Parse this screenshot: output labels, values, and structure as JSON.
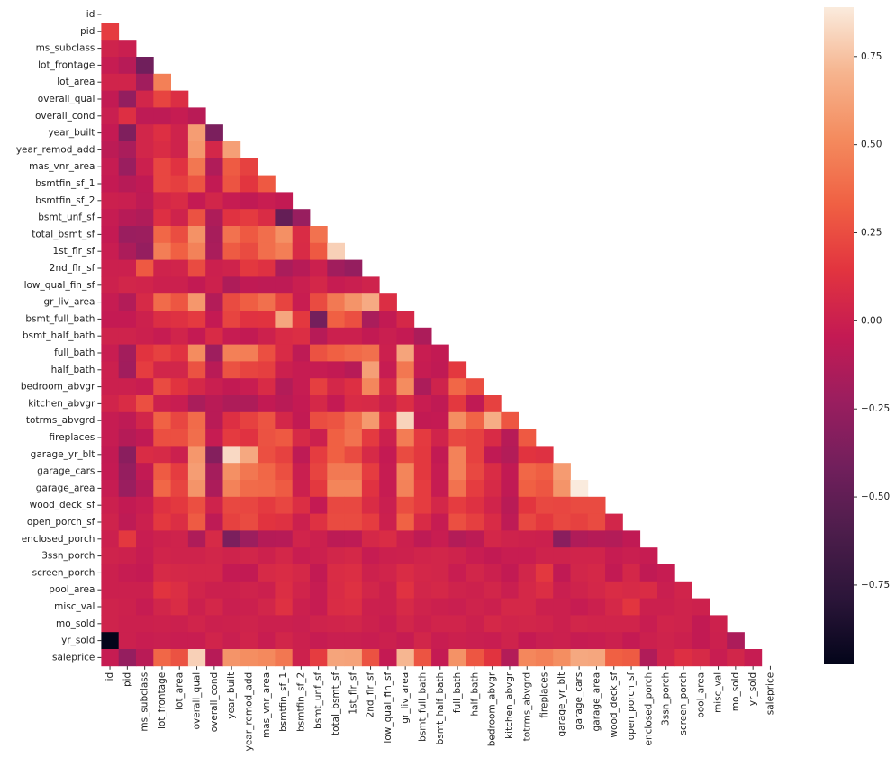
{
  "chart_data": {
    "type": "heatmap",
    "categories": [
      "id",
      "pid",
      "ms_subclass",
      "lot_frontage",
      "lot_area",
      "overall_qual",
      "overall_cond",
      "year_built",
      "year_remod_add",
      "mas_vnr_area",
      "bsmtfin_sf_1",
      "bsmtfin_sf_2",
      "bsmt_unf_sf",
      "total_bsmt_sf",
      "1st_flr_sf",
      "2nd_flr_sf",
      "low_qual_fin_sf",
      "gr_liv_area",
      "bsmt_full_bath",
      "bsmt_half_bath",
      "full_bath",
      "half_bath",
      "bedroom_abvgr",
      "kitchen_abvgr",
      "totrms_abvgrd",
      "fireplaces",
      "garage_yr_blt",
      "garage_cars",
      "garage_area",
      "wood_deck_sf",
      "open_porch_sf",
      "enclosed_porch",
      "3ssn_porch",
      "screen_porch",
      "pool_area",
      "misc_val",
      "mo_sold",
      "yr_sold",
      "saleprice"
    ],
    "values": [
      [],
      [
        0.18
      ],
      [
        0.02,
        -0.01
      ],
      [
        -0.03,
        -0.1,
        -0.42
      ],
      [
        0.03,
        0.03,
        -0.2,
        0.47
      ],
      [
        -0.05,
        -0.26,
        0.04,
        0.21,
        0.1
      ],
      [
        -0.01,
        0.11,
        -0.07,
        -0.07,
        -0.03,
        -0.09
      ],
      [
        -0.04,
        -0.35,
        0.04,
        0.11,
        0.02,
        0.6,
        -0.37
      ],
      [
        -0.08,
        -0.16,
        0.04,
        0.09,
        0.02,
        0.57,
        0.05,
        0.61
      ],
      [
        -0.03,
        -0.23,
        0.0,
        0.22,
        0.13,
        0.43,
        -0.13,
        0.31,
        0.2
      ],
      [
        -0.04,
        -0.1,
        -0.06,
        0.22,
        0.19,
        0.28,
        -0.05,
        0.28,
        0.15,
        0.3
      ],
      [
        0.0,
        -0.01,
        -0.07,
        0.05,
        0.08,
        -0.04,
        0.04,
        -0.03,
        -0.06,
        -0.02,
        -0.05
      ],
      [
        -0.03,
        -0.1,
        -0.13,
        0.11,
        0.02,
        0.27,
        -0.14,
        0.13,
        0.17,
        0.09,
        -0.48,
        -0.24
      ],
      [
        -0.04,
        -0.23,
        -0.22,
        0.36,
        0.25,
        0.55,
        -0.17,
        0.41,
        0.3,
        0.39,
        0.54,
        0.09,
        0.41
      ],
      [
        -0.02,
        -0.15,
        -0.25,
        0.46,
        0.33,
        0.48,
        -0.16,
        0.31,
        0.24,
        0.39,
        0.46,
        0.08,
        0.3,
        0.8
      ],
      [
        0.0,
        0.0,
        0.3,
        0.02,
        0.03,
        0.24,
        0.0,
        0.02,
        0.16,
        0.12,
        -0.16,
        -0.1,
        0.0,
        -0.2,
        -0.25
      ],
      [
        0.01,
        0.04,
        0.03,
        0.0,
        0.0,
        -0.05,
        0.01,
        -0.14,
        -0.06,
        -0.07,
        -0.07,
        -0.01,
        0.05,
        -0.03,
        -0.01,
        0.02
      ],
      [
        -0.03,
        -0.12,
        0.07,
        0.38,
        0.29,
        0.57,
        -0.12,
        0.24,
        0.32,
        0.4,
        0.21,
        -0.02,
        0.24,
        0.44,
        0.56,
        0.66,
        0.1
      ],
      [
        -0.04,
        -0.04,
        0.01,
        0.1,
        0.12,
        0.17,
        -0.04,
        0.21,
        0.13,
        0.14,
        0.64,
        0.16,
        -0.4,
        0.33,
        0.26,
        -0.16,
        -0.05,
        0.06
      ],
      [
        0.02,
        0.02,
        0.0,
        -0.03,
        0.03,
        -0.04,
        0.08,
        -0.03,
        -0.05,
        0.01,
        0.08,
        0.1,
        -0.1,
        0.0,
        0.0,
        -0.05,
        -0.01,
        -0.04,
        -0.15
      ],
      [
        -0.02,
        -0.19,
        0.14,
        0.2,
        0.13,
        0.52,
        -0.21,
        0.47,
        0.46,
        0.26,
        0.08,
        -0.07,
        0.27,
        0.33,
        0.37,
        0.4,
        0.0,
        0.63,
        -0.02,
        -0.05
      ],
      [
        0.0,
        -0.2,
        0.18,
        0.04,
        0.04,
        0.27,
        -0.09,
        0.27,
        0.21,
        0.19,
        0.0,
        -0.03,
        -0.03,
        -0.05,
        -0.1,
        0.61,
        -0.03,
        0.43,
        -0.03,
        -0.06,
        0.16
      ],
      [
        0.0,
        0.0,
        -0.02,
        0.24,
        0.14,
        0.06,
        -0.01,
        -0.05,
        -0.02,
        0.08,
        -0.12,
        -0.03,
        0.19,
        0.05,
        0.11,
        0.5,
        0.07,
        0.52,
        -0.15,
        0.02,
        0.36,
        0.25
      ],
      [
        0.03,
        0.09,
        0.26,
        0.0,
        -0.02,
        -0.16,
        -0.09,
        -0.14,
        -0.14,
        -0.05,
        -0.09,
        -0.04,
        0.06,
        -0.04,
        0.08,
        0.07,
        0.0,
        0.1,
        -0.02,
        -0.06,
        0.16,
        -0.06,
        0.2
      ],
      [
        -0.03,
        -0.07,
        0.04,
        0.34,
        0.22,
        0.38,
        -0.09,
        0.11,
        0.2,
        0.28,
        0.05,
        -0.05,
        0.25,
        0.28,
        0.39,
        0.58,
        0.1,
        0.81,
        -0.05,
        -0.04,
        0.53,
        0.35,
        0.67,
        0.29
      ],
      [
        -0.03,
        -0.11,
        -0.06,
        0.26,
        0.26,
        0.39,
        -0.03,
        0.17,
        0.13,
        0.27,
        0.3,
        0.07,
        0.0,
        0.33,
        0.41,
        0.17,
        0.0,
        0.45,
        0.17,
        0.03,
        0.23,
        0.2,
        0.08,
        -0.1,
        0.3
      ],
      [
        -0.05,
        -0.3,
        0.09,
        0.07,
        0.0,
        0.57,
        -0.33,
        0.83,
        0.65,
        0.26,
        0.2,
        -0.07,
        0.18,
        0.33,
        0.24,
        0.07,
        -0.04,
        0.24,
        0.16,
        -0.05,
        0.48,
        0.2,
        -0.06,
        -0.12,
        0.14,
        0.12
      ],
      [
        -0.04,
        -0.25,
        -0.05,
        0.31,
        0.18,
        0.6,
        -0.18,
        0.54,
        0.43,
        0.36,
        0.26,
        -0.01,
        0.21,
        0.44,
        0.44,
        0.18,
        -0.03,
        0.49,
        0.16,
        -0.03,
        0.48,
        0.23,
        0.09,
        -0.05,
        0.36,
        0.32,
        0.59
      ],
      [
        -0.03,
        -0.23,
        -0.1,
        0.36,
        0.21,
        0.56,
        -0.15,
        0.48,
        0.38,
        0.37,
        0.31,
        0.0,
        0.16,
        0.49,
        0.49,
        0.13,
        -0.03,
        0.48,
        0.18,
        -0.03,
        0.41,
        0.18,
        0.07,
        -0.06,
        0.33,
        0.29,
        0.56,
        0.89
      ],
      [
        0.0,
        -0.05,
        -0.02,
        0.12,
        0.16,
        0.26,
        0.02,
        0.23,
        0.22,
        0.17,
        0.22,
        0.1,
        -0.04,
        0.23,
        0.23,
        0.09,
        -0.01,
        0.25,
        0.18,
        0.05,
        0.18,
        0.12,
        0.03,
        -0.09,
        0.15,
        0.23,
        0.22,
        0.24,
        0.24
      ],
      [
        0.02,
        -0.07,
        0.0,
        0.16,
        0.1,
        0.31,
        -0.07,
        0.2,
        0.24,
        0.14,
        0.12,
        0.0,
        0.12,
        0.24,
        0.24,
        0.18,
        0.0,
        0.34,
        0.08,
        -0.03,
        0.26,
        0.19,
        0.08,
        -0.07,
        0.23,
        0.16,
        0.23,
        0.2,
        0.24,
        0.04
      ],
      [
        0.0,
        0.16,
        -0.02,
        0.01,
        0.02,
        -0.14,
        0.07,
        -0.37,
        -0.22,
        -0.11,
        -0.1,
        0.03,
        0.0,
        -0.08,
        -0.07,
        0.06,
        0.09,
        0.0,
        -0.07,
        -0.02,
        -0.12,
        -0.08,
        0.05,
        0.02,
        0.01,
        0.0,
        -0.3,
        -0.13,
        -0.11,
        -0.12,
        -0.06
      ],
      [
        0.02,
        0.01,
        -0.03,
        0.03,
        0.02,
        0.02,
        0.04,
        0.02,
        0.04,
        0.01,
        0.05,
        -0.02,
        0.0,
        0.04,
        0.06,
        -0.03,
        0.0,
        0.01,
        0.03,
        0.04,
        0.02,
        -0.02,
        -0.05,
        -0.02,
        -0.02,
        0.02,
        0.02,
        0.03,
        0.03,
        -0.03,
        -0.01,
        -0.03
      ],
      [
        0.0,
        -0.03,
        -0.04,
        0.07,
        0.06,
        0.05,
        0.05,
        -0.04,
        -0.05,
        0.07,
        0.09,
        0.06,
        -0.05,
        0.09,
        0.1,
        0.01,
        0.03,
        0.09,
        0.05,
        0.04,
        -0.02,
        0.04,
        0.0,
        -0.05,
        0.04,
        0.16,
        -0.06,
        0.04,
        0.06,
        -0.05,
        0.05,
        -0.06,
        -0.03
      ],
      [
        0.0,
        0.0,
        0.0,
        0.14,
        0.1,
        0.03,
        0.0,
        0.0,
        0.02,
        0.0,
        0.1,
        0.03,
        -0.03,
        0.08,
        0.12,
        0.04,
        0.0,
        0.13,
        0.04,
        0.06,
        0.02,
        0.01,
        0.04,
        -0.01,
        0.06,
        0.1,
        -0.01,
        0.02,
        0.05,
        0.09,
        0.07,
        0.09,
        -0.01,
        0.03
      ],
      [
        0.02,
        0.01,
        -0.03,
        0.04,
        0.09,
        0.0,
        0.05,
        -0.01,
        0.0,
        0.04,
        0.12,
        0.0,
        -0.03,
        0.09,
        0.1,
        0.0,
        0.0,
        0.07,
        0.02,
        0.0,
        -0.01,
        0.02,
        0.0,
        0.06,
        0.06,
        0.0,
        0.0,
        -0.03,
        0.0,
        0.06,
        0.15,
        0.0,
        0.0,
        0.02,
        0.01
      ],
      [
        0.02,
        0.0,
        0.0,
        0.01,
        0.0,
        0.03,
        0.0,
        0.01,
        0.02,
        0.0,
        0.0,
        -0.01,
        0.02,
        0.03,
        0.04,
        0.01,
        -0.02,
        0.04,
        0.0,
        0.03,
        0.03,
        0.0,
        0.06,
        0.03,
        0.04,
        0.03,
        0.0,
        0.04,
        0.03,
        0.03,
        0.03,
        -0.02,
        0.03,
        0.02,
        -0.05,
        0.01
      ],
      [
        -0.975,
        0.0,
        -0.02,
        -0.01,
        -0.02,
        -0.02,
        0.03,
        -0.01,
        0.03,
        -0.02,
        0.04,
        0.0,
        -0.03,
        -0.01,
        -0.01,
        -0.02,
        0.0,
        -0.03,
        0.04,
        -0.02,
        0.0,
        -0.01,
        -0.02,
        0.02,
        -0.04,
        -0.01,
        0.0,
        -0.03,
        -0.02,
        0.0,
        -0.04,
        0.0,
        0.02,
        0.0,
        -0.05,
        0.0,
        -0.15
      ],
      [
        -0.03,
        -0.25,
        -0.09,
        0.36,
        0.27,
        0.8,
        -0.1,
        0.56,
        0.53,
        0.51,
        0.43,
        0.01,
        0.18,
        0.63,
        0.62,
        0.27,
        -0.04,
        0.71,
        0.28,
        -0.04,
        0.55,
        0.29,
        0.14,
        -0.12,
        0.5,
        0.47,
        0.53,
        0.65,
        0.64,
        0.33,
        0.31,
        -0.13,
        0.03,
        0.11,
        0.07,
        -0.02,
        0.04,
        -0.03
      ]
    ],
    "zlim": [
      -0.975,
      0.89
    ],
    "zticks": [
      0.75,
      {
        "value": 0.5,
        "label": "0.50"
      },
      0.25,
      {
        "value": 0,
        "label": "0.00"
      },
      {
        "value": -0.25,
        "label": "−0.25"
      },
      {
        "value": -0.5,
        "label": "−0.50"
      },
      {
        "value": -0.75,
        "label": "−0.75"
      }
    ],
    "colormap": [
      "#03051a",
      "#2b1539",
      "#4c1d4b",
      "#711f5c",
      "#9a1e5f",
      "#c41a53",
      "#e2343f",
      "#f06043",
      "#f48b5e",
      "#f6b48e",
      "#faebdd"
    ]
  }
}
